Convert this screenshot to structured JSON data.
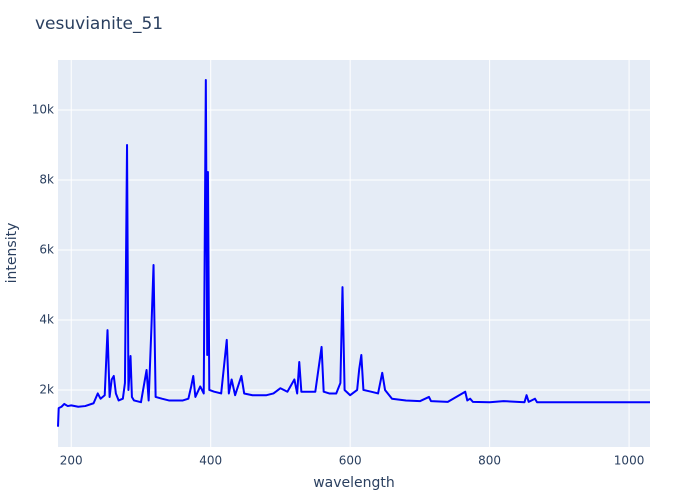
{
  "chart_data": {
    "type": "line",
    "title": "vesuvianite_51",
    "xlabel": "wavelength",
    "ylabel": "intensity",
    "x": [
      181,
      182,
      186,
      190,
      195,
      200,
      210,
      220,
      232,
      238,
      242,
      248,
      252,
      255,
      258,
      261,
      264,
      268,
      274,
      277,
      280,
      282,
      285,
      287,
      290,
      300,
      308,
      311,
      315,
      318,
      321,
      330,
      340,
      350,
      360,
      368,
      372,
      375,
      378,
      385,
      390,
      393,
      395,
      396,
      398,
      405,
      415,
      423,
      426,
      430,
      435,
      444,
      448,
      460,
      480,
      490,
      500,
      510,
      520,
      524,
      527,
      530,
      540,
      550,
      559,
      562,
      570,
      580,
      586,
      589,
      592,
      600,
      610,
      613,
      616,
      619,
      630,
      640,
      646,
      650,
      660,
      680,
      700,
      713,
      716,
      740,
      765,
      768,
      772,
      776,
      800,
      820,
      850,
      853,
      856,
      865,
      868,
      900,
      950,
      1000,
      1030
    ],
    "series": [
      {
        "name": "vesuvianite_51",
        "color": "#0000ff",
        "values": [
          950,
          1480,
          1520,
          1600,
          1540,
          1560,
          1520,
          1540,
          1620,
          1900,
          1750,
          1850,
          3710,
          1800,
          2300,
          2400,
          1900,
          1700,
          1750,
          2200,
          9000,
          2000,
          2970,
          1800,
          1700,
          1650,
          2570,
          1700,
          3800,
          5570,
          1800,
          1750,
          1700,
          1700,
          1700,
          1750,
          2100,
          2400,
          1800,
          2100,
          1900,
          10857,
          3000,
          8230,
          2000,
          1950,
          1900,
          3430,
          1900,
          2300,
          1850,
          2400,
          1900,
          1850,
          1850,
          1900,
          2050,
          1950,
          2300,
          1900,
          2800,
          1950,
          1950,
          1950,
          3230,
          1950,
          1900,
          1900,
          2200,
          4940,
          2000,
          1850,
          2000,
          2600,
          3000,
          2000,
          1950,
          1900,
          2490,
          2000,
          1750,
          1700,
          1680,
          1800,
          1680,
          1660,
          1950,
          1700,
          1750,
          1660,
          1650,
          1680,
          1650,
          1850,
          1660,
          1750,
          1650,
          1650,
          1650,
          1650,
          1650
        ]
      }
    ],
    "xlim": [
      181,
      1030
    ],
    "ylim": [
      370,
      11430
    ],
    "xticks": [
      200,
      400,
      600,
      800,
      1000
    ],
    "yticks": [
      {
        "value": 2000,
        "label": "2k"
      },
      {
        "value": 4000,
        "label": "4k"
      },
      {
        "value": 6000,
        "label": "6k"
      },
      {
        "value": 8000,
        "label": "8k"
      },
      {
        "value": 10000,
        "label": "10k"
      }
    ],
    "grid": true
  }
}
